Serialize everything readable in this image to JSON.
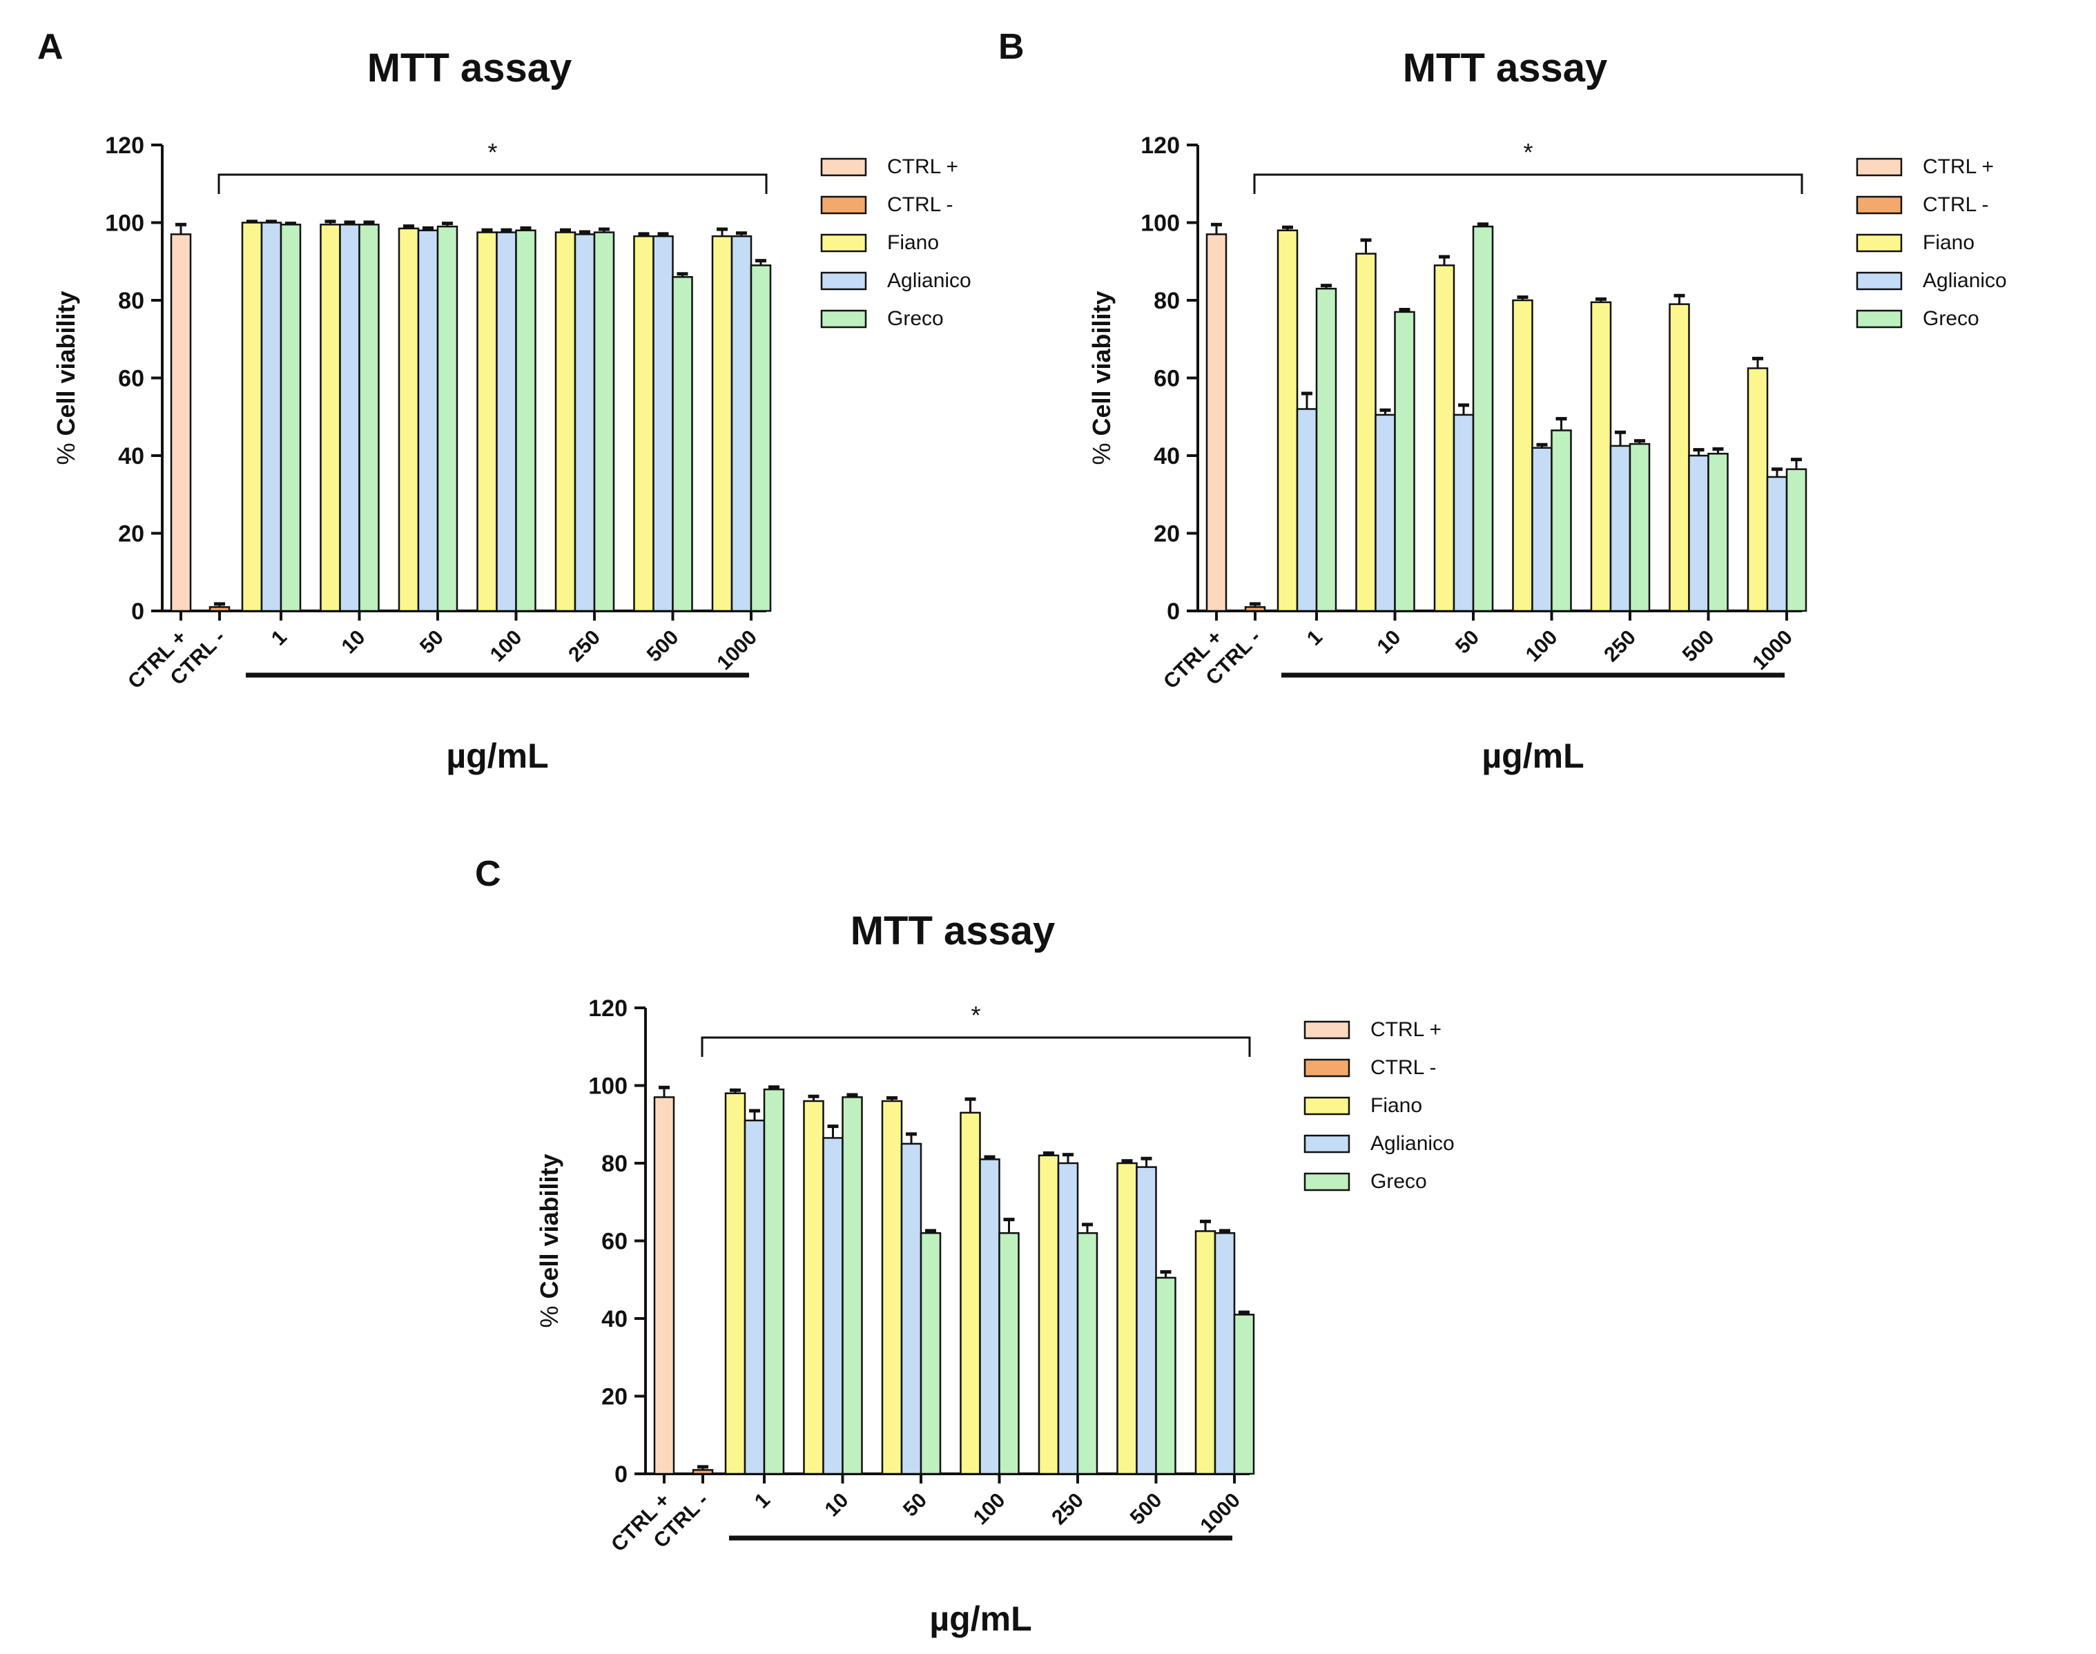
{
  "chart_data": [
    {
      "panel": "A",
      "type": "bar",
      "title": "MTT assay",
      "ylabel": "% Cell viability",
      "ylabel_prefix": "%",
      "ylabel_main": "Cell viability",
      "xlabel": "µg/mL",
      "ylim": [
        0,
        120
      ],
      "yticks": [
        "0",
        "20",
        "40",
        "60",
        "80",
        "100",
        "120"
      ],
      "significance": "*",
      "controls": [
        {
          "name": "CTRL +",
          "label": "CTRL +",
          "value": 97,
          "error": 2.5
        },
        {
          "name": "CTRL -",
          "label": "CTRL -",
          "value": 1,
          "error": 0.8
        }
      ],
      "categories": [
        "1",
        "10",
        "50",
        "100",
        "250",
        "500",
        "1000"
      ],
      "series": [
        {
          "name": "Fiano",
          "values": [
            100,
            99.5,
            98.5,
            97.5,
            97.5,
            96.5,
            96.5
          ],
          "errors": [
            0.3,
            0.8,
            0.6,
            0.6,
            0.6,
            0.6,
            1.8
          ]
        },
        {
          "name": "Aglianico",
          "values": [
            100,
            99.5,
            98,
            97.5,
            97,
            96.5,
            96.5
          ],
          "errors": [
            0.3,
            0.6,
            0.6,
            0.6,
            0.6,
            0.6,
            0.8
          ]
        },
        {
          "name": "Greco",
          "values": [
            99.5,
            99.5,
            99,
            98,
            97.5,
            86,
            89
          ],
          "errors": [
            0.3,
            0.6,
            0.8,
            0.6,
            0.8,
            0.8,
            1.2
          ]
        }
      ],
      "legend": [
        "CTRL +",
        "CTRL -",
        "Fiano",
        "Aglianico",
        "Greco"
      ]
    },
    {
      "panel": "B",
      "type": "bar",
      "title": "MTT assay",
      "ylabel": "% Cell viability",
      "ylabel_prefix": "%",
      "ylabel_main": "Cell viability",
      "xlabel": "µg/mL",
      "ylim": [
        0,
        120
      ],
      "yticks": [
        "0",
        "20",
        "40",
        "60",
        "80",
        "100",
        "120"
      ],
      "significance": "*",
      "controls": [
        {
          "name": "CTRL +",
          "label": "CTRL +",
          "value": 97,
          "error": 2.5
        },
        {
          "name": "CTRL -",
          "label": "CTRL -",
          "value": 1,
          "error": 0.8
        }
      ],
      "categories": [
        "1",
        "10",
        "50",
        "100",
        "250",
        "500",
        "1000"
      ],
      "series": [
        {
          "name": "Fiano",
          "values": [
            98,
            92,
            89,
            80,
            79.5,
            79,
            62.5
          ],
          "errors": [
            0.8,
            3.5,
            2.2,
            0.8,
            0.8,
            2.2,
            2.5
          ]
        },
        {
          "name": "Aglianico",
          "values": [
            52,
            50.5,
            50.5,
            42,
            42.5,
            40,
            34.5
          ],
          "errors": [
            4,
            1.2,
            2.5,
            0.8,
            3.5,
            1.5,
            2
          ]
        },
        {
          "name": "Greco",
          "values": [
            83,
            77,
            99,
            46.5,
            43,
            40.5,
            36.5
          ],
          "errors": [
            0.8,
            0.6,
            0.6,
            3,
            0.8,
            1.2,
            2.5
          ]
        }
      ],
      "legend": [
        "CTRL +",
        "CTRL -",
        "Fiano",
        "Aglianico",
        "Greco"
      ]
    },
    {
      "panel": "C",
      "type": "bar",
      "title": "MTT assay",
      "ylabel": "% Cell viability",
      "ylabel_prefix": "%",
      "ylabel_main": "Cell viability",
      "xlabel": "µg/mL",
      "ylim": [
        0,
        120
      ],
      "yticks": [
        "0",
        "20",
        "40",
        "60",
        "80",
        "100",
        "120"
      ],
      "significance": "*",
      "controls": [
        {
          "name": "CTRL +",
          "label": "CTRL +",
          "value": 97,
          "error": 2.5
        },
        {
          "name": "CTRL -",
          "label": "CTRL -",
          "value": 1,
          "error": 0.8
        }
      ],
      "categories": [
        "1",
        "10",
        "50",
        "100",
        "250",
        "500",
        "1000"
      ],
      "series": [
        {
          "name": "Fiano",
          "values": [
            98,
            96,
            96,
            93,
            82,
            80,
            62.5
          ],
          "errors": [
            0.8,
            1.2,
            0.8,
            3.5,
            0.6,
            0.6,
            2.5
          ]
        },
        {
          "name": "Aglianico",
          "values": [
            91,
            86.5,
            85,
            81,
            80,
            79,
            62
          ],
          "errors": [
            2.5,
            3,
            2.5,
            0.6,
            2.2,
            2.2,
            0.6
          ]
        },
        {
          "name": "Greco",
          "values": [
            99,
            97,
            62,
            62,
            62,
            50.5,
            41
          ],
          "errors": [
            0.6,
            0.6,
            0.6,
            3.5,
            2.2,
            1.5,
            0.6
          ]
        }
      ],
      "legend": [
        "CTRL +",
        "CTRL -",
        "Fiano",
        "Aglianico",
        "Greco"
      ]
    }
  ],
  "colors": {
    "CTRL +": "#FCD9BE",
    "CTRL -": "#F4A96A",
    "Fiano": "#FBF78E",
    "Aglianico": "#C4DCF6",
    "Greco": "#BFF0BF",
    "axis": "#111111"
  }
}
